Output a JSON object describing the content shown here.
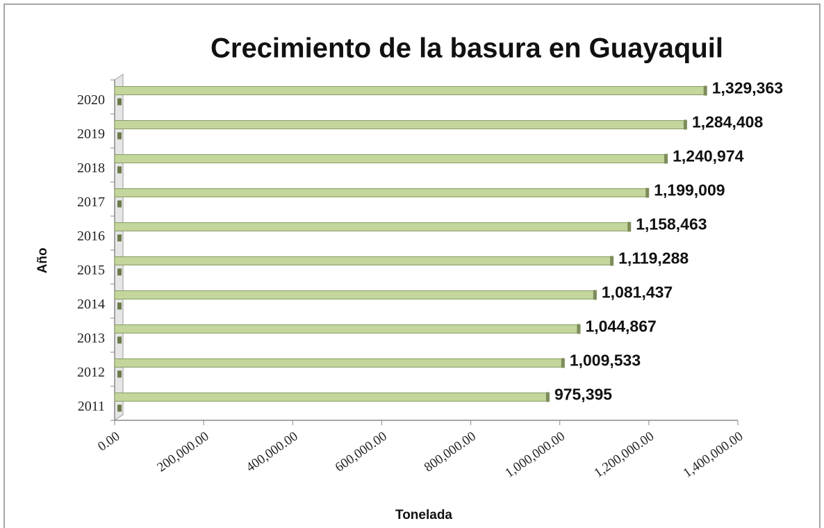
{
  "chart_data": {
    "type": "bar",
    "horizontal": true,
    "title": "Crecimiento de la basura en Guayaquil",
    "x_label": "Tonelada",
    "y_label": "Año",
    "categories": [
      "2011",
      "2012",
      "2013",
      "2014",
      "2015",
      "2016",
      "2017",
      "2018",
      "2019",
      "2020"
    ],
    "values": [
      975395,
      1009533,
      1044867,
      1081437,
      1119288,
      1158463,
      1199009,
      1240974,
      1284408,
      1329363
    ],
    "value_labels": [
      "975,395",
      "1,009,533",
      "1,044,867",
      "1,081,437",
      "1,119,288",
      "1,158,463",
      "1,199,009",
      "1,240,974",
      "1,284,408",
      "1,329,363"
    ],
    "color": "#c3d69b",
    "xlim": [
      0,
      1400000
    ],
    "xticks": [
      {
        "value": 0,
        "label": "0.00"
      },
      {
        "value": 200000,
        "label": "200,000.00"
      },
      {
        "value": 400000,
        "label": "400,000.00"
      },
      {
        "value": 600000,
        "label": "600,000.00"
      },
      {
        "value": 800000,
        "label": "800,000.00"
      },
      {
        "value": 1000000,
        "label": "1,000,000.00"
      },
      {
        "value": 1200000,
        "label": "1,200,000.00"
      },
      {
        "value": 1400000,
        "label": "1,400,000.00"
      }
    ]
  }
}
